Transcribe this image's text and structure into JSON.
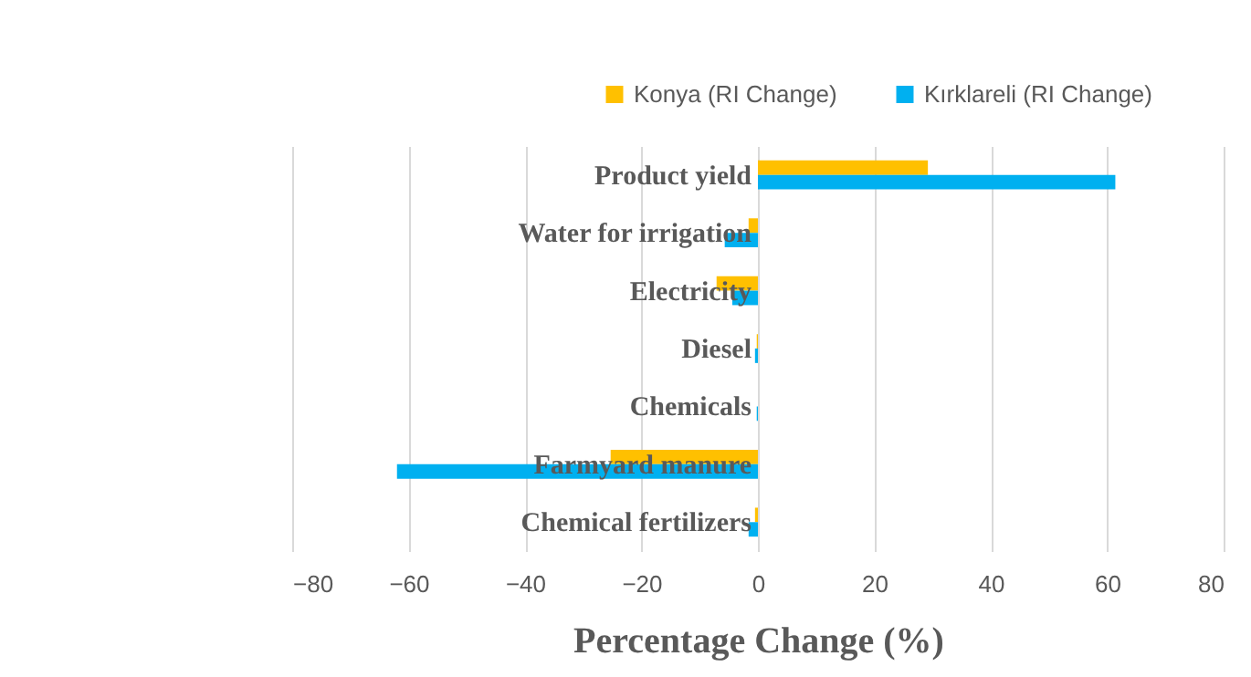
{
  "chart_data": {
    "type": "bar",
    "orientation": "horizontal",
    "xlabel": "Percentage Change (%)",
    "categories": [
      "Product yield",
      "Water for irrigation",
      "Electricity",
      "Diesel",
      "Chemicals",
      "Farmyard manure",
      "Chemical fertilizers"
    ],
    "series": [
      {
        "name": "Konya (RI Change)",
        "color": "#ffc000",
        "values": [
          29.2,
          -1.6,
          -7.1,
          -0.2,
          0,
          -25.3,
          -0.5
        ]
      },
      {
        "name": "Kırklareli (RI Change)",
        "color": "#00b0f0",
        "values": [
          61.4,
          -5.7,
          -4.4,
          -0.5,
          -0.2,
          -62,
          -1.6
        ]
      }
    ],
    "xlim": [
      -80,
      80
    ],
    "xticks": [
      -80,
      -60,
      -40,
      -20,
      0,
      20,
      40,
      60,
      80
    ],
    "grid": "x",
    "legend": "top"
  }
}
